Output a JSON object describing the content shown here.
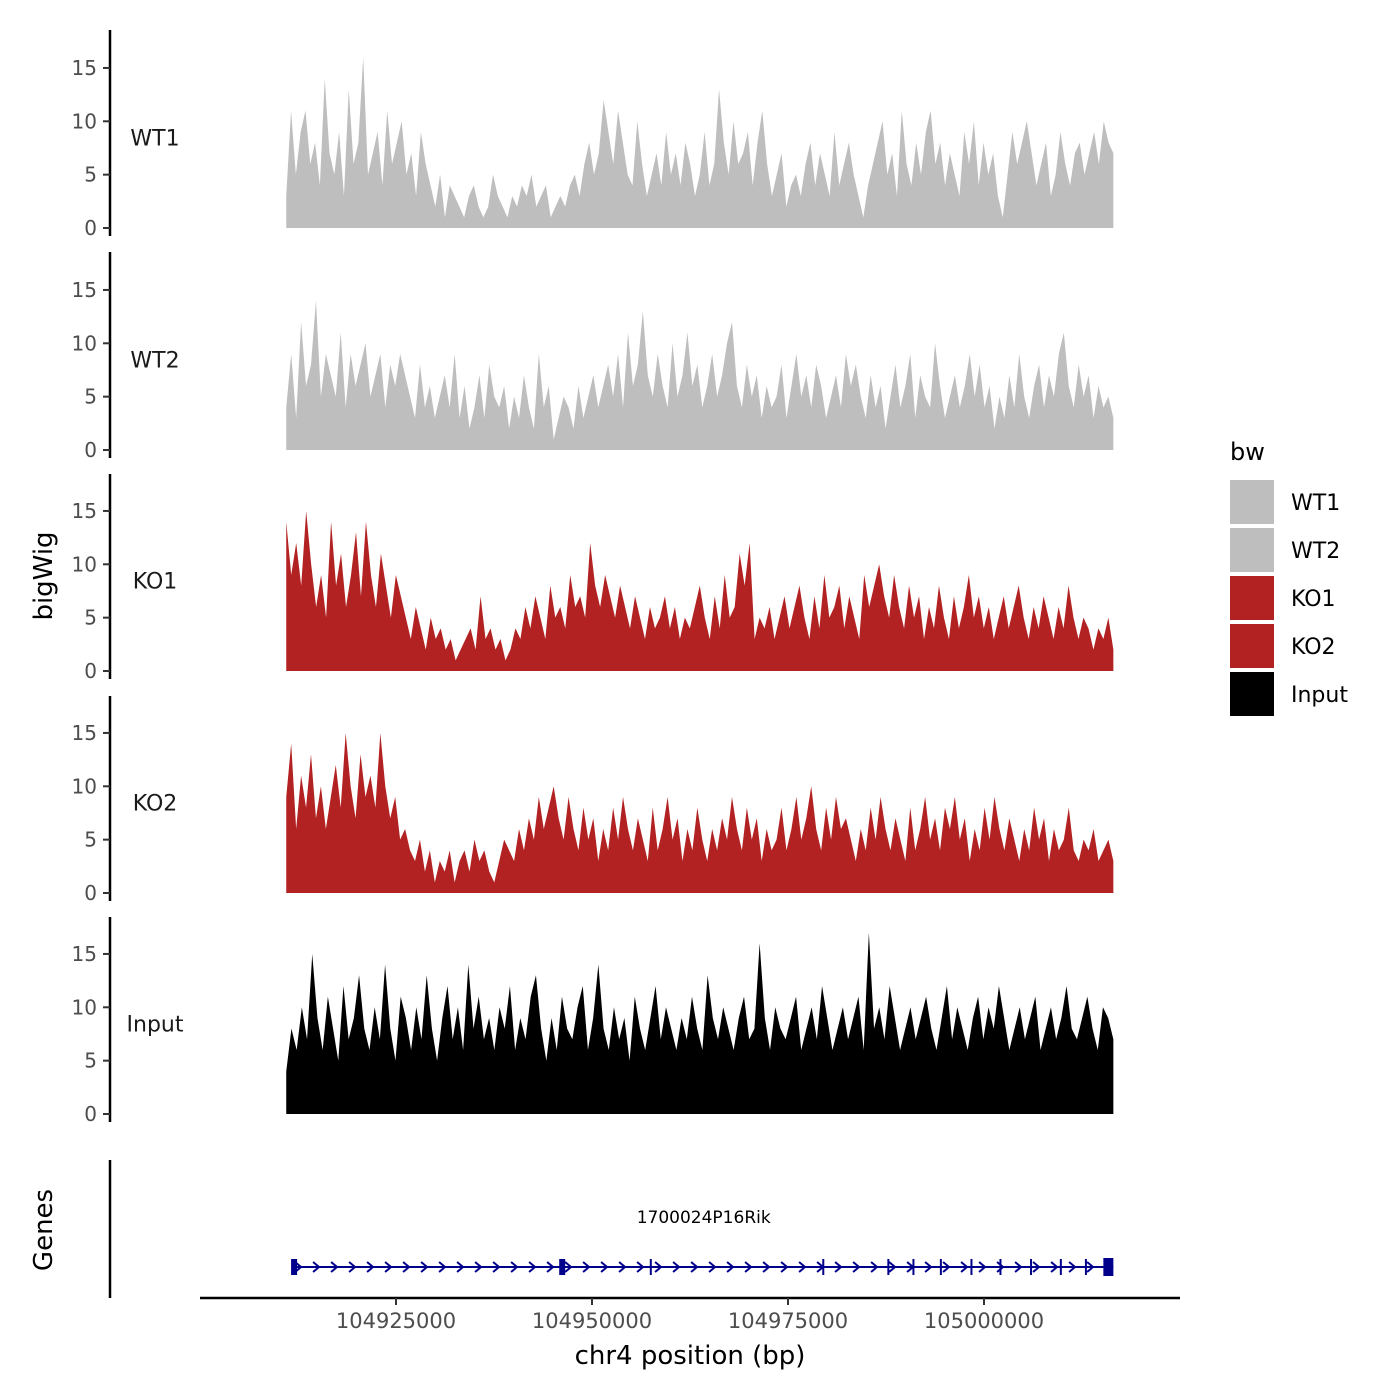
{
  "chart_data": {
    "type": "area",
    "title": "",
    "ylabel": "bigWig",
    "xlabel": "chr4 position (bp)",
    "genes_label": "Genes",
    "xlim": [
      104900000,
      105025000
    ],
    "data_xrange": [
      104911000,
      105016500
    ],
    "ylim": [
      0,
      18
    ],
    "yticks": [
      0,
      5,
      10,
      15
    ],
    "xticks": [
      104925000,
      104950000,
      104975000,
      105000000
    ],
    "xtick_labels": [
      "104925000",
      "104950000",
      "104975000",
      "105000000"
    ],
    "legend": {
      "title": "bw",
      "position": "right",
      "entries": [
        {
          "label": "WT1",
          "color": "#bebebe"
        },
        {
          "label": "WT2",
          "color": "#bebebe"
        },
        {
          "label": "KO1",
          "color": "#b22222"
        },
        {
          "label": "KO2",
          "color": "#b22222"
        },
        {
          "label": "Input",
          "color": "#000000"
        }
      ]
    },
    "series": [
      {
        "name": "WT1",
        "color": "#bebebe",
        "values": [
          3,
          11,
          5,
          9,
          11,
          6,
          8,
          4,
          14,
          7,
          5,
          9,
          3,
          13,
          6,
          8,
          16,
          5,
          7,
          9,
          4,
          11,
          6,
          8,
          10,
          5,
          7,
          3,
          9,
          6,
          4,
          2,
          5,
          1,
          4,
          3,
          2,
          1,
          3,
          4,
          2,
          1,
          2,
          5,
          3,
          2,
          1,
          3,
          2,
          4,
          3,
          5,
          2,
          3,
          4,
          1,
          2,
          3,
          2,
          4,
          5,
          3,
          6,
          8,
          5,
          7,
          12,
          9,
          6,
          11,
          8,
          5,
          4,
          10,
          6,
          3,
          5,
          7,
          4,
          9,
          5,
          7,
          4,
          8,
          6,
          3,
          5,
          9,
          4,
          6,
          13,
          8,
          5,
          10,
          6,
          7,
          9,
          4,
          8,
          11,
          6,
          3,
          5,
          7,
          2,
          4,
          5,
          3,
          6,
          8,
          4,
          7,
          5,
          3,
          9,
          4,
          6,
          8,
          5,
          3,
          1,
          4,
          6,
          8,
          10,
          5,
          7,
          3,
          11,
          6,
          4,
          8,
          5,
          9,
          11,
          6,
          8,
          4,
          7,
          5,
          3,
          9,
          6,
          10,
          4,
          8,
          5,
          7,
          3,
          1,
          5,
          9,
          6,
          8,
          10,
          7,
          4,
          6,
          8,
          3,
          5,
          9,
          6,
          4,
          7,
          8,
          5,
          7,
          9,
          6,
          10,
          8,
          7
        ]
      },
      {
        "name": "WT2",
        "color": "#bebebe",
        "values": [
          4,
          9,
          3,
          12,
          6,
          8,
          14,
          5,
          9,
          7,
          5,
          11,
          4,
          9,
          6,
          8,
          10,
          5,
          7,
          9,
          4,
          8,
          6,
          9,
          7,
          5,
          3,
          8,
          4,
          6,
          3,
          5,
          7,
          4,
          9,
          3,
          6,
          2,
          4,
          7,
          3,
          8,
          5,
          4,
          6,
          2,
          5,
          3,
          7,
          4,
          2,
          9,
          4,
          6,
          1,
          3,
          5,
          4,
          2,
          6,
          3,
          5,
          7,
          4,
          6,
          8,
          5,
          9,
          4,
          11,
          6,
          8,
          13,
          7,
          5,
          9,
          6,
          4,
          10,
          5,
          7,
          11,
          6,
          8,
          4,
          6,
          9,
          5,
          7,
          10,
          12,
          6,
          4,
          8,
          5,
          7,
          3,
          6,
          4,
          5,
          8,
          3,
          6,
          9,
          5,
          7,
          4,
          8,
          6,
          3,
          5,
          7,
          4,
          9,
          6,
          8,
          5,
          3,
          7,
          4,
          6,
          2,
          5,
          8,
          4,
          6,
          9,
          3,
          7,
          5,
          4,
          10,
          6,
          3,
          5,
          7,
          4,
          6,
          9,
          5,
          8,
          4,
          6,
          2,
          5,
          3,
          7,
          4,
          9,
          5,
          3,
          6,
          8,
          4,
          7,
          5,
          9,
          11,
          6,
          4,
          8,
          5,
          7,
          3,
          6,
          4,
          5,
          3
        ]
      },
      {
        "name": "KO1",
        "color": "#b22222",
        "values": [
          14,
          9,
          12,
          8,
          15,
          10,
          6,
          9,
          5,
          14,
          8,
          11,
          6,
          9,
          13,
          7,
          14,
          9,
          6,
          11,
          8,
          5,
          9,
          7,
          5,
          3,
          6,
          4,
          2,
          5,
          3,
          4,
          2,
          3,
          1,
          2,
          3,
          4,
          2,
          7,
          3,
          4,
          2,
          3,
          1,
          2,
          4,
          3,
          6,
          4,
          7,
          5,
          3,
          8,
          5,
          6,
          4,
          9,
          6,
          7,
          5,
          12,
          8,
          6,
          9,
          7,
          5,
          8,
          6,
          4,
          7,
          5,
          3,
          6,
          4,
          5,
          7,
          4,
          6,
          3,
          5,
          4,
          6,
          8,
          5,
          3,
          7,
          4,
          9,
          5,
          6,
          11,
          8,
          12,
          3,
          5,
          4,
          6,
          3,
          5,
          7,
          4,
          6,
          8,
          5,
          3,
          7,
          4,
          9,
          5,
          6,
          8,
          4,
          7,
          5,
          3,
          9,
          6,
          8,
          10,
          7,
          5,
          9,
          6,
          4,
          8,
          5,
          7,
          3,
          6,
          4,
          8,
          5,
          3,
          7,
          4,
          6,
          9,
          5,
          7,
          4,
          6,
          3,
          5,
          7,
          4,
          6,
          8,
          5,
          3,
          6,
          4,
          7,
          5,
          3,
          6,
          4,
          8,
          5,
          3,
          5,
          4,
          2,
          4,
          3,
          5,
          2
        ]
      },
      {
        "name": "KO2",
        "color": "#b22222",
        "values": [
          9,
          14,
          6,
          11,
          8,
          13,
          7,
          10,
          6,
          9,
          12,
          8,
          15,
          10,
          7,
          13,
          9,
          11,
          8,
          15,
          10,
          7,
          9,
          5,
          6,
          4,
          3,
          5,
          2,
          4,
          1,
          3,
          2,
          4,
          1,
          3,
          4,
          2,
          5,
          3,
          4,
          2,
          1,
          3,
          5,
          4,
          3,
          6,
          4,
          7,
          5,
          9,
          6,
          8,
          10,
          7,
          5,
          9,
          6,
          4,
          8,
          5,
          7,
          3,
          6,
          4,
          8,
          5,
          9,
          6,
          4,
          7,
          5,
          3,
          8,
          4,
          6,
          9,
          5,
          7,
          3,
          6,
          4,
          8,
          5,
          3,
          6,
          4,
          7,
          5,
          9,
          6,
          4,
          8,
          5,
          7,
          3,
          6,
          4,
          5,
          8,
          4,
          6,
          9,
          5,
          7,
          10,
          6,
          4,
          8,
          5,
          9,
          6,
          7,
          5,
          3,
          6,
          4,
          8,
          5,
          9,
          6,
          4,
          7,
          5,
          3,
          8,
          4,
          6,
          9,
          5,
          7,
          4,
          8,
          6,
          9,
          5,
          7,
          3,
          6,
          4,
          8,
          5,
          9,
          6,
          4,
          7,
          5,
          3,
          6,
          4,
          8,
          5,
          7,
          3,
          6,
          4,
          5,
          8,
          4,
          3,
          5,
          4,
          6,
          3,
          4,
          5,
          3
        ]
      },
      {
        "name": "Input",
        "color": "#000000",
        "values": [
          4,
          8,
          6,
          10,
          7,
          15,
          9,
          6,
          11,
          8,
          5,
          12,
          7,
          9,
          13,
          8,
          6,
          10,
          7,
          14,
          8,
          5,
          11,
          9,
          6,
          10,
          7,
          13,
          8,
          5,
          9,
          12,
          7,
          10,
          6,
          14,
          8,
          11,
          7,
          9,
          6,
          10,
          8,
          12,
          6,
          9,
          7,
          11,
          13,
          8,
          5,
          9,
          6,
          11,
          8,
          7,
          10,
          12,
          6,
          9,
          14,
          8,
          6,
          10,
          7,
          9,
          5,
          11,
          8,
          6,
          9,
          12,
          7,
          10,
          8,
          6,
          9,
          7,
          11,
          8,
          6,
          13,
          9,
          7,
          10,
          8,
          6,
          9,
          11,
          7,
          8,
          16,
          9,
          6,
          10,
          8,
          7,
          9,
          11,
          6,
          8,
          10,
          7,
          12,
          9,
          6,
          8,
          10,
          7,
          9,
          11,
          6,
          17,
          8,
          10,
          7,
          12,
          9,
          6,
          8,
          10,
          7,
          9,
          11,
          8,
          6,
          9,
          12,
          7,
          10,
          8,
          6,
          9,
          11,
          7,
          10,
          8,
          12,
          9,
          6,
          8,
          10,
          7,
          9,
          11,
          6,
          8,
          10,
          7,
          9,
          12,
          8,
          7,
          9,
          11,
          8,
          6,
          10,
          9,
          7
        ]
      }
    ],
    "gene": {
      "name": "1700024P16Rik",
      "strand": "+",
      "start": 104912000,
      "end": 105016500,
      "color": "#00008b"
    }
  }
}
